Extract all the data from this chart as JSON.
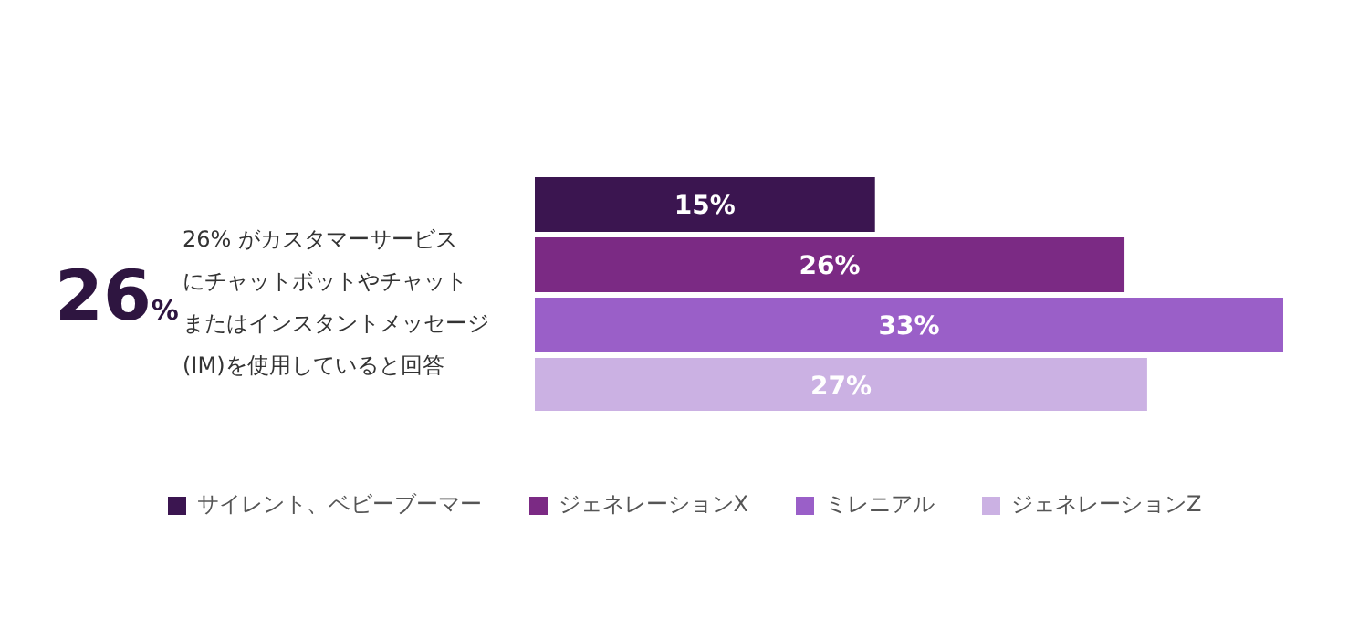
{
  "chart_data": {
    "type": "bar",
    "orientation": "horizontal",
    "categories": [
      null
    ],
    "series": [
      {
        "name": "サイレント、ベビーブーマー",
        "color": "#3b1550",
        "values": [
          15
        ],
        "value_labels": [
          "15%"
        ]
      },
      {
        "name": "ジェネレーションX",
        "color": "#7b2a84",
        "values": [
          26
        ],
        "value_labels": [
          "26%"
        ]
      },
      {
        "name": "ミレニアル",
        "color": "#9a5fc8",
        "values": [
          33
        ],
        "value_labels": [
          "33%"
        ]
      },
      {
        "name": "ジェネレーションZ",
        "color": "#cbb1e3",
        "values": [
          27
        ],
        "value_labels": [
          "27%"
        ]
      }
    ],
    "annotations": [
      "26%",
      "26% がカスタマーサービス",
      "にチャットボットやチャット",
      "またはインスタントメッセージ",
      "(IM)を使用していると回答"
    ],
    "legend": "bottom"
  }
}
